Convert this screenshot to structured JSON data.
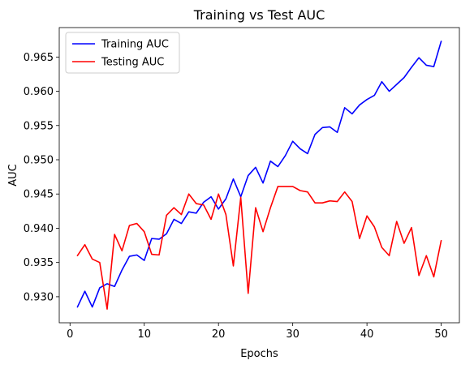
{
  "chart_data": {
    "type": "line",
    "title": "Training vs Test AUC",
    "xlabel": "Epochs",
    "ylabel": "AUC",
    "xlim": [
      -1.45,
      52.45
    ],
    "ylim": [
      0.9262,
      0.9693
    ],
    "x_ticks": [
      0,
      10,
      20,
      30,
      40,
      50
    ],
    "y_ticks": [
      0.93,
      0.935,
      0.94,
      0.945,
      0.95,
      0.955,
      0.96,
      0.965
    ],
    "y_tick_labels": [
      "0.930",
      "0.935",
      "0.940",
      "0.945",
      "0.950",
      "0.955",
      "0.960",
      "0.965"
    ],
    "grid": false,
    "legend_position": "top-left",
    "x": [
      1,
      2,
      3,
      4,
      5,
      6,
      7,
      8,
      9,
      10,
      11,
      12,
      13,
      14,
      15,
      16,
      17,
      18,
      19,
      20,
      21,
      22,
      23,
      24,
      25,
      26,
      27,
      28,
      29,
      30,
      31,
      32,
      33,
      34,
      35,
      36,
      37,
      38,
      39,
      40,
      41,
      42,
      43,
      44,
      45,
      46,
      47,
      48,
      49,
      50
    ],
    "series": [
      {
        "name": "Training AUC",
        "color": "#0000ff",
        "values": [
          0.9285,
          0.9308,
          0.9285,
          0.9313,
          0.9319,
          0.9315,
          0.9339,
          0.9359,
          0.9361,
          0.9353,
          0.9385,
          0.9384,
          0.9392,
          0.9413,
          0.9407,
          0.9424,
          0.9422,
          0.9438,
          0.9446,
          0.9428,
          0.9443,
          0.9472,
          0.9446,
          0.9477,
          0.9489,
          0.9466,
          0.9498,
          0.949,
          0.9506,
          0.9527,
          0.9516,
          0.9509,
          0.9537,
          0.9547,
          0.9548,
          0.954,
          0.9576,
          0.9567,
          0.958,
          0.9588,
          0.9594,
          0.9614,
          0.96,
          0.961,
          0.962,
          0.9635,
          0.9649,
          0.9638,
          0.9636,
          0.9673
        ]
      },
      {
        "name": "Testing AUC",
        "color": "#ff0000",
        "values": [
          0.936,
          0.9376,
          0.9355,
          0.935,
          0.9282,
          0.9391,
          0.9367,
          0.9404,
          0.9407,
          0.9395,
          0.9362,
          0.9361,
          0.9419,
          0.943,
          0.942,
          0.945,
          0.9436,
          0.9434,
          0.9413,
          0.945,
          0.942,
          0.9345,
          0.9445,
          0.9305,
          0.943,
          0.9395,
          0.943,
          0.9461,
          0.9461,
          0.9461,
          0.9455,
          0.9453,
          0.9437,
          0.9437,
          0.944,
          0.9439,
          0.9453,
          0.9439,
          0.9385,
          0.9418,
          0.9402,
          0.9372,
          0.936,
          0.941,
          0.9378,
          0.9401,
          0.9331,
          0.936,
          0.9329,
          0.9382
        ]
      }
    ]
  }
}
